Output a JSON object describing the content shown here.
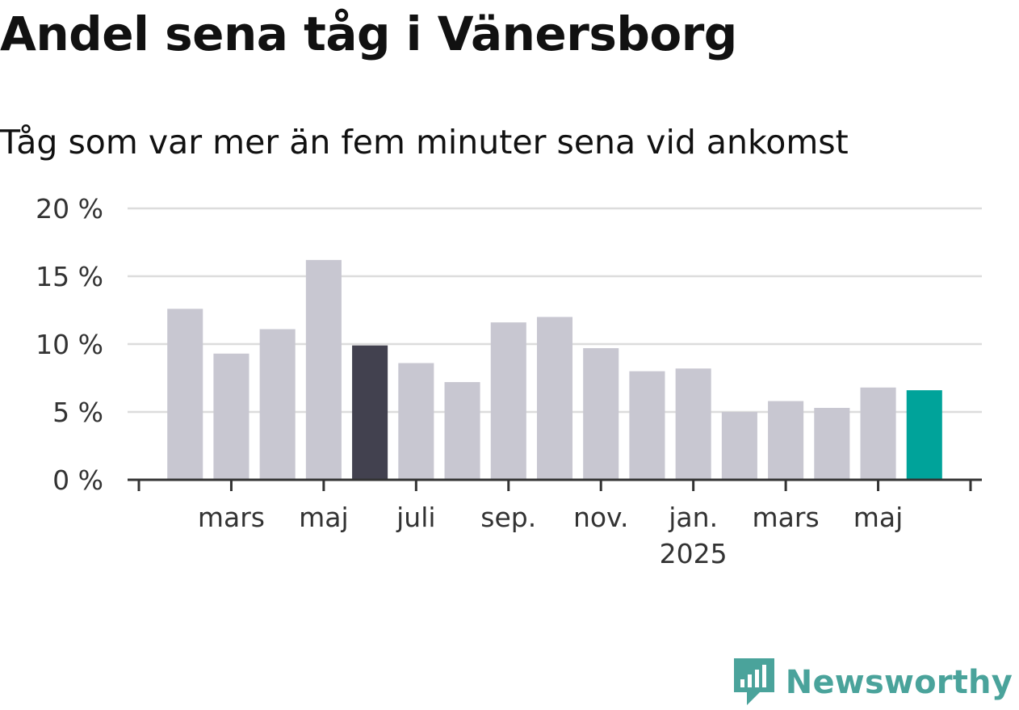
{
  "chart_data": {
    "type": "bar",
    "title": "Andel sena tåg i Vänersborg",
    "subtitle": "Tåg som var mer än fem minuter sena vid ankomst",
    "ylim": [
      0,
      20
    ],
    "yticks": [
      "0 %",
      "5 %",
      "10 %",
      "15 %",
      "20 %"
    ],
    "ytick_values": [
      0,
      5,
      10,
      15,
      20
    ],
    "grid": true,
    "x_tick_labels": [
      {
        "label": "mars",
        "sublabel": ""
      },
      {
        "label": "maj",
        "sublabel": ""
      },
      {
        "label": "juli",
        "sublabel": ""
      },
      {
        "label": "sep.",
        "sublabel": ""
      },
      {
        "label": "nov.",
        "sublabel": ""
      },
      {
        "label": "jan.",
        "sublabel": "2025"
      },
      {
        "label": "mars",
        "sublabel": ""
      },
      {
        "label": "maj",
        "sublabel": ""
      }
    ],
    "categories": [
      "2024-02",
      "2024-03",
      "2024-04",
      "2024-05",
      "2024-06",
      "2024-07",
      "2024-08",
      "2024-09",
      "2024-10",
      "2024-11",
      "2024-12",
      "2025-01",
      "2025-02",
      "2025-03",
      "2025-04",
      "2025-05",
      "2025-06"
    ],
    "values": [
      12.6,
      9.3,
      11.1,
      16.2,
      9.9,
      8.6,
      7.2,
      11.6,
      12.0,
      9.7,
      8.0,
      8.2,
      5.0,
      5.8,
      5.3,
      6.8,
      6.6
    ],
    "highlight": {
      "2024-06": "#42414f",
      "2025-06": "#00a39a"
    },
    "colors": {
      "default": "#c8c7d1",
      "grid": "#dcdcdc",
      "axis": "#333333"
    }
  },
  "branding": {
    "logo_text": "Newsworthy",
    "logo_color": "#4aa39b"
  }
}
